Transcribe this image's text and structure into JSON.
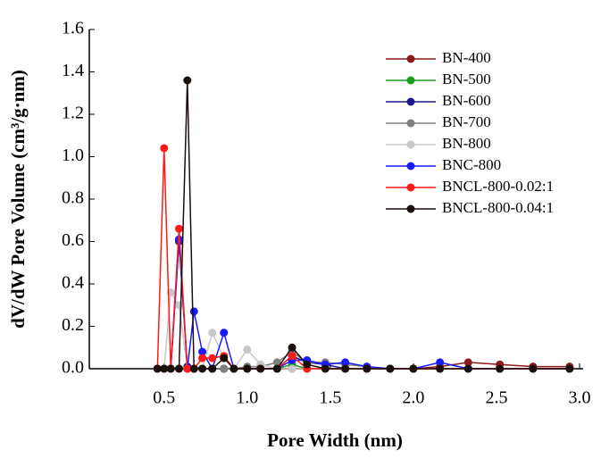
{
  "chart_data": {
    "type": "line",
    "x_label": "Pore Width (nm)",
    "y_label": "dV/dW Pore Volume (cm³/g·nm)",
    "x": [
      0.46,
      0.5,
      0.54,
      0.59,
      0.64,
      0.68,
      0.73,
      0.79,
      0.86,
      0.92,
      1.0,
      1.08,
      1.18,
      1.27,
      1.36,
      1.47,
      1.59,
      1.72,
      1.86,
      2.0,
      2.16,
      2.33,
      2.52,
      2.72,
      2.94
    ],
    "xlim": [
      0.05,
      3.0
    ],
    "ylim": [
      0,
      1.6
    ],
    "xticks": [
      0.5,
      {
        "value": 1.0,
        "label": "1.0"
      },
      1.5,
      {
        "value": 2.0,
        "label": "2.0"
      },
      2.5,
      {
        "value": 3.0,
        "label": "3.0"
      }
    ],
    "yticks": [
      {
        "value": 0,
        "label": "0.0"
      },
      0.2,
      0.4,
      0.6,
      0.8,
      {
        "value": 1.0,
        "label": "1.0"
      },
      1.2,
      1.4,
      1.6
    ],
    "legend": "upper right",
    "series": [
      {
        "name": "BN-400",
        "color": "#8b1a1a",
        "values": [
          0,
          0,
          0,
          0,
          0,
          0,
          0,
          0,
          0,
          0,
          0,
          0,
          0,
          0,
          0,
          0,
          0,
          0,
          0,
          0,
          0.01,
          0.03,
          0.02,
          0.01,
          0.01
        ]
      },
      {
        "name": "BN-500",
        "color": "#1a9e1a",
        "values": [
          0,
          0,
          0,
          0,
          0,
          0,
          0,
          0,
          0,
          0,
          0,
          0,
          0,
          0.02,
          0,
          0,
          0,
          0,
          0,
          0,
          0,
          0,
          0,
          0,
          0
        ]
      },
      {
        "name": "BN-600",
        "color": "#1a1a8c",
        "values": [
          0,
          0,
          0,
          0.6,
          0.01,
          0,
          0,
          0,
          0,
          0,
          0,
          0,
          0,
          0.06,
          0.03,
          0.02,
          0,
          0,
          0,
          0,
          0,
          0,
          0,
          0,
          0
        ]
      },
      {
        "name": "BN-700",
        "color": "#808080",
        "values": [
          0,
          0,
          0,
          0,
          0,
          0,
          0,
          0,
          0,
          0,
          0.01,
          0.01,
          0.03,
          0.08,
          0.03,
          0.03,
          0.02,
          0.01,
          0,
          0,
          0,
          0,
          0,
          0,
          0
        ]
      },
      {
        "name": "BN-800",
        "color": "#c8c8c8",
        "values": [
          0,
          0,
          0.36,
          0.3,
          0,
          0,
          0,
          0.17,
          0.05,
          0,
          0.09,
          0.02,
          0,
          0,
          0,
          0,
          0,
          0,
          0,
          0,
          0,
          0,
          0,
          0,
          0
        ]
      },
      {
        "name": "BNC-800",
        "color": "#1a1aff",
        "values": [
          0,
          0,
          0,
          0.61,
          0,
          0.27,
          0.08,
          0,
          0.17,
          0,
          0,
          0,
          0,
          0.04,
          0.04,
          0.02,
          0.03,
          0.01,
          0,
          0,
          0.03,
          0,
          0,
          0,
          0
        ]
      },
      {
        "name": "BNCL-800-0.02:1",
        "color": "#ff1a1a",
        "values": [
          0,
          1.04,
          0,
          0.66,
          0,
          0,
          0.05,
          0.05,
          0.06,
          0,
          0,
          0,
          0,
          0.06,
          0,
          0,
          0,
          0,
          0,
          0,
          0,
          0,
          0,
          0,
          0
        ]
      },
      {
        "name": "BNCL-800-0.04:1",
        "color": "#1a0f0a",
        "values": [
          0,
          0,
          0,
          0,
          1.36,
          0,
          0,
          0,
          0.05,
          0,
          0,
          0,
          0,
          0.1,
          0.02,
          0,
          0,
          0,
          0,
          0,
          0,
          0,
          0,
          0,
          0
        ]
      }
    ]
  }
}
